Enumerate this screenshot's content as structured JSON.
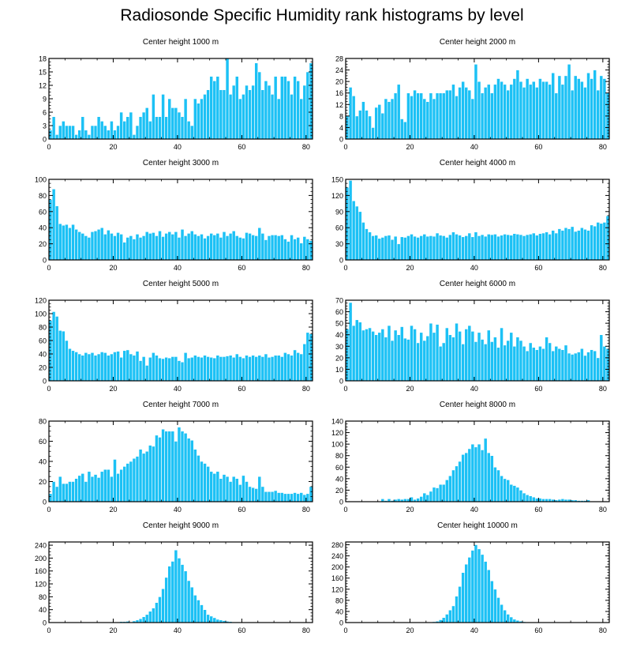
{
  "title": "Radiosonde Specific Humidity rank histograms by level",
  "colors": {
    "bar": "#1cc1f5",
    "bar_edge": "#ffffff",
    "axis": "#000000"
  },
  "chart_data": [
    {
      "type": "bar",
      "title": "Center height 1000 m",
      "xlim": [
        0,
        82
      ],
      "xticks": [
        0,
        20,
        40,
        60,
        80
      ],
      "ylim": [
        0,
        18
      ],
      "yticks": [
        0,
        3,
        6,
        9,
        12,
        15,
        18
      ],
      "values": [
        2,
        5,
        1,
        3,
        4,
        3,
        3,
        3,
        1,
        2,
        5,
        2,
        1,
        3,
        3,
        5,
        4,
        3,
        2,
        4,
        2,
        3,
        6,
        4,
        5,
        6,
        1,
        3,
        5,
        6,
        7,
        4,
        10,
        5,
        5,
        10,
        5,
        9,
        7,
        7,
        6,
        5,
        9,
        4,
        3,
        9,
        8,
        9,
        10,
        11,
        14,
        13,
        14,
        11,
        11,
        18,
        10,
        12,
        14,
        9,
        10,
        12,
        11,
        12,
        17,
        15,
        11,
        13,
        12,
        10,
        14,
        9,
        14,
        14,
        13,
        10,
        14,
        13,
        9,
        12,
        15,
        17
      ]
    },
    {
      "type": "bar",
      "title": "Center height 2000 m",
      "xlim": [
        0,
        82
      ],
      "xticks": [
        0,
        20,
        40,
        60,
        80
      ],
      "ylim": [
        0,
        28
      ],
      "yticks": [
        0,
        4,
        8,
        12,
        16,
        20,
        24,
        28
      ],
      "values": [
        8,
        18,
        15,
        8,
        10,
        13,
        10,
        8,
        4,
        11,
        12,
        9,
        14,
        13,
        14,
        16,
        19,
        7,
        6,
        16,
        15,
        17,
        16,
        16,
        14,
        13,
        16,
        14,
        16,
        16,
        16,
        17,
        17,
        19,
        15,
        18,
        20,
        18,
        17,
        14,
        26,
        20,
        16,
        18,
        19,
        16,
        19,
        21,
        20,
        19,
        17,
        19,
        21,
        24,
        20,
        18,
        21,
        19,
        20,
        18,
        21,
        20,
        20,
        19,
        23,
        16,
        22,
        19,
        22,
        26,
        17,
        22,
        21,
        20,
        18,
        23,
        21,
        24,
        17,
        22,
        21,
        16
      ]
    },
    {
      "type": "bar",
      "title": "Center height 3000 m",
      "xlim": [
        0,
        82
      ],
      "xticks": [
        0,
        20,
        40,
        60,
        80
      ],
      "ylim": [
        0,
        100
      ],
      "yticks": [
        0,
        20,
        40,
        60,
        80,
        100
      ],
      "values": [
        75,
        88,
        67,
        45,
        43,
        44,
        40,
        44,
        38,
        35,
        33,
        30,
        28,
        35,
        36,
        38,
        40,
        32,
        37,
        33,
        30,
        34,
        32,
        22,
        28,
        30,
        26,
        32,
        28,
        30,
        35,
        33,
        34,
        30,
        36,
        29,
        33,
        35,
        32,
        35,
        28,
        38,
        30,
        33,
        36,
        32,
        30,
        32,
        27,
        30,
        33,
        31,
        33,
        28,
        35,
        30,
        33,
        36,
        30,
        28,
        27,
        34,
        33,
        31,
        30,
        40,
        33,
        25,
        30,
        31,
        31,
        30,
        31,
        26,
        23,
        31,
        26,
        28,
        21,
        29,
        26,
        24
      ]
    },
    {
      "type": "bar",
      "title": "Center height 4000 m",
      "xlim": [
        0,
        82
      ],
      "xticks": [
        0,
        20,
        40,
        60,
        80
      ],
      "ylim": [
        0,
        150
      ],
      "yticks": [
        0,
        30,
        60,
        90,
        120,
        150
      ],
      "values": [
        135,
        148,
        110,
        100,
        90,
        70,
        58,
        52,
        45,
        46,
        40,
        42,
        45,
        46,
        38,
        44,
        30,
        43,
        42,
        45,
        48,
        44,
        42,
        45,
        48,
        44,
        45,
        44,
        50,
        46,
        45,
        42,
        47,
        52,
        48,
        46,
        43,
        45,
        50,
        43,
        52,
        45,
        47,
        44,
        48,
        47,
        48,
        44,
        46,
        48,
        47,
        46,
        49,
        48,
        47,
        45,
        47,
        48,
        50,
        46,
        49,
        50,
        52,
        48,
        55,
        50,
        58,
        55,
        60,
        58,
        62,
        53,
        55,
        60,
        57,
        55,
        65,
        63,
        70,
        68,
        70,
        82
      ]
    },
    {
      "type": "bar",
      "title": "Center height 5000 m",
      "xlim": [
        0,
        82
      ],
      "xticks": [
        0,
        20,
        40,
        60,
        80
      ],
      "ylim": [
        0,
        120
      ],
      "yticks": [
        0,
        20,
        40,
        60,
        80,
        100,
        120
      ],
      "values": [
        90,
        103,
        96,
        75,
        74,
        60,
        48,
        45,
        43,
        40,
        38,
        42,
        40,
        42,
        38,
        40,
        43,
        42,
        38,
        40,
        43,
        44,
        35,
        45,
        46,
        40,
        38,
        44,
        30,
        36,
        23,
        35,
        42,
        38,
        34,
        33,
        35,
        34,
        36,
        36,
        30,
        28,
        42,
        34,
        35,
        38,
        36,
        35,
        38,
        36,
        35,
        34,
        38,
        36,
        36,
        37,
        38,
        35,
        40,
        36,
        34,
        38,
        36,
        38,
        36,
        38,
        36,
        40,
        35,
        36,
        38,
        38,
        36,
        42,
        40,
        38,
        46,
        42,
        40,
        55,
        72,
        70
      ]
    },
    {
      "type": "bar",
      "title": "Center height 6000 m",
      "xlim": [
        0,
        82
      ],
      "xticks": [
        0,
        20,
        40,
        60,
        80
      ],
      "ylim": [
        0,
        70
      ],
      "yticks": [
        0,
        10,
        20,
        30,
        40,
        50,
        60,
        70
      ],
      "values": [
        45,
        68,
        48,
        53,
        51,
        44,
        45,
        46,
        43,
        40,
        42,
        45,
        38,
        48,
        35,
        44,
        40,
        47,
        37,
        36,
        48,
        45,
        33,
        42,
        35,
        39,
        50,
        42,
        49,
        30,
        33,
        46,
        40,
        38,
        50,
        43,
        32,
        45,
        48,
        43,
        34,
        42,
        36,
        32,
        44,
        34,
        38,
        29,
        46,
        31,
        35,
        42,
        30,
        38,
        35,
        30,
        26,
        33,
        29,
        27,
        30,
        28,
        38,
        33,
        26,
        30,
        28,
        27,
        31,
        24,
        23,
        24,
        25,
        28,
        22,
        25,
        27,
        26,
        20,
        40,
        30,
        28
      ]
    },
    {
      "type": "bar",
      "title": "Center height 7000 m",
      "xlim": [
        0,
        82
      ],
      "xticks": [
        0,
        20,
        40,
        60,
        80
      ],
      "ylim": [
        0,
        80
      ],
      "yticks": [
        0,
        20,
        40,
        60,
        80
      ],
      "values": [
        8,
        20,
        15,
        25,
        18,
        18,
        20,
        20,
        23,
        26,
        28,
        20,
        30,
        25,
        27,
        24,
        30,
        32,
        32,
        25,
        42,
        28,
        32,
        35,
        38,
        40,
        43,
        45,
        52,
        48,
        50,
        56,
        55,
        66,
        64,
        72,
        70,
        70,
        70,
        60,
        74,
        70,
        68,
        63,
        61,
        52,
        46,
        40,
        38,
        35,
        30,
        28,
        30,
        23,
        27,
        25,
        20,
        25,
        23,
        17,
        26,
        20,
        15,
        14,
        13,
        25,
        15,
        10,
        10,
        10,
        11,
        9,
        9,
        8,
        8,
        8,
        9,
        8,
        9,
        7,
        8,
        15
      ]
    },
    {
      "type": "bar",
      "title": "Center height 8000 m",
      "xlim": [
        0,
        82
      ],
      "xticks": [
        0,
        20,
        40,
        60,
        80
      ],
      "ylim": [
        0,
        140
      ],
      "yticks": [
        0,
        20,
        40,
        60,
        80,
        100,
        120,
        140
      ],
      "values": [
        0,
        0,
        0,
        0,
        0,
        0,
        0,
        0,
        0,
        0,
        0,
        5,
        2,
        5,
        2,
        4,
        5,
        4,
        5,
        5,
        8,
        4,
        6,
        9,
        15,
        12,
        18,
        25,
        24,
        30,
        30,
        38,
        45,
        55,
        62,
        70,
        82,
        85,
        92,
        100,
        95,
        100,
        90,
        110,
        85,
        80,
        60,
        55,
        45,
        40,
        38,
        30,
        28,
        25,
        20,
        15,
        12,
        10,
        8,
        6,
        6,
        5,
        5,
        5,
        4,
        3,
        4,
        5,
        4,
        4,
        3,
        3,
        2,
        2,
        2,
        3,
        1,
        1,
        1,
        1,
        1,
        1
      ]
    },
    {
      "type": "bar",
      "title": "Center height 9000 m",
      "xlim": [
        0,
        82
      ],
      "xticks": [
        0,
        20,
        40,
        60,
        80
      ],
      "ylim": [
        0,
        250
      ],
      "yticks": [
        0,
        40,
        80,
        120,
        160,
        200,
        240
      ],
      "values": [
        0,
        0,
        0,
        0,
        0,
        0,
        0,
        0,
        0,
        0,
        0,
        0,
        0,
        0,
        0,
        0,
        0,
        0,
        0,
        2,
        0,
        2,
        3,
        3,
        4,
        2,
        5,
        8,
        12,
        18,
        25,
        35,
        45,
        62,
        80,
        105,
        140,
        175,
        190,
        225,
        200,
        180,
        160,
        130,
        110,
        85,
        70,
        55,
        40,
        25,
        20,
        15,
        10,
        8,
        6,
        4,
        3,
        2,
        2,
        1,
        1,
        0,
        0,
        0,
        0,
        0,
        0,
        0,
        0,
        0,
        0,
        0,
        0,
        0,
        0,
        0,
        0,
        0,
        0,
        0,
        0,
        0
      ]
    },
    {
      "type": "bar",
      "title": "Center height 10000 m",
      "xlim": [
        0,
        82
      ],
      "xticks": [
        0,
        20,
        40,
        60,
        80
      ],
      "ylim": [
        0,
        290
      ],
      "yticks": [
        0,
        40,
        80,
        120,
        160,
        200,
        240,
        280
      ],
      "values": [
        0,
        0,
        0,
        0,
        0,
        0,
        0,
        0,
        0,
        0,
        0,
        0,
        0,
        0,
        0,
        0,
        0,
        0,
        0,
        0,
        0,
        0,
        0,
        0,
        0,
        1,
        2,
        3,
        5,
        10,
        18,
        30,
        45,
        60,
        95,
        130,
        180,
        210,
        235,
        260,
        280,
        265,
        245,
        220,
        190,
        150,
        120,
        90,
        65,
        45,
        30,
        20,
        12,
        8,
        5,
        3,
        2,
        2,
        1,
        1,
        1,
        1,
        0,
        0,
        0,
        0,
        2,
        0,
        0,
        0,
        0,
        0,
        0,
        0,
        0,
        0,
        0,
        0,
        0,
        0,
        0,
        0
      ]
    }
  ]
}
